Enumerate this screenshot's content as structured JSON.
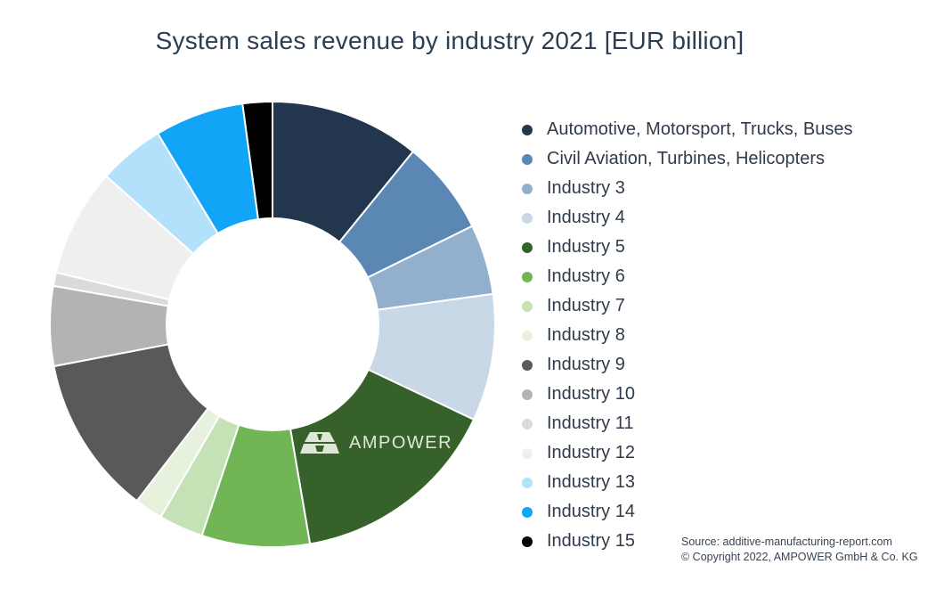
{
  "chart_data": {
    "type": "pie",
    "title": "System sales revenue by industry 2021 [EUR billion]",
    "donut": true,
    "legend_position": "right",
    "series": [
      {
        "name": "Automotive, Motorsport, Trucks, Buses",
        "color": "#22364d",
        "value": 11.1
      },
      {
        "name": "Civil Aviation, Turbines, Helicopters",
        "color": "#5b87b4",
        "value": 7.0
      },
      {
        "name": "Industry 3",
        "color": "#92b0cd",
        "value": 5.2
      },
      {
        "name": "Industry 4",
        "color": "#c9d8e6",
        "value": 9.4
      },
      {
        "name": "Industry 5",
        "color": "#37612a",
        "value": 15.6
      },
      {
        "name": "Industry 6",
        "color": "#72b556",
        "value": 8.0
      },
      {
        "name": "Industry 7",
        "color": "#c5e2b6",
        "value": 3.3
      },
      {
        "name": "Industry 8",
        "color": "#e6f2de",
        "value": 2.1
      },
      {
        "name": "Industry 9",
        "color": "#595959",
        "value": 11.8
      },
      {
        "name": "Industry 10",
        "color": "#b3b3b3",
        "value": 5.9
      },
      {
        "name": "Industry 11",
        "color": "#dadada",
        "value": 1.0
      },
      {
        "name": "Industry 12",
        "color": "#efefef",
        "value": 8.0
      },
      {
        "name": "Industry 13",
        "color": "#b3e0fb",
        "value": 4.9
      },
      {
        "name": "Industry 14",
        "color": "#12a5f7",
        "value": 6.6
      },
      {
        "name": "Industry 15",
        "color": "#000000",
        "value": 2.2
      }
    ]
  },
  "watermark": "AMPOWER",
  "source": {
    "line1": "Source: additive-manufacturing-report.com",
    "line2": "© Copyright 2022, AMPOWER GmbH & Co. KG"
  }
}
